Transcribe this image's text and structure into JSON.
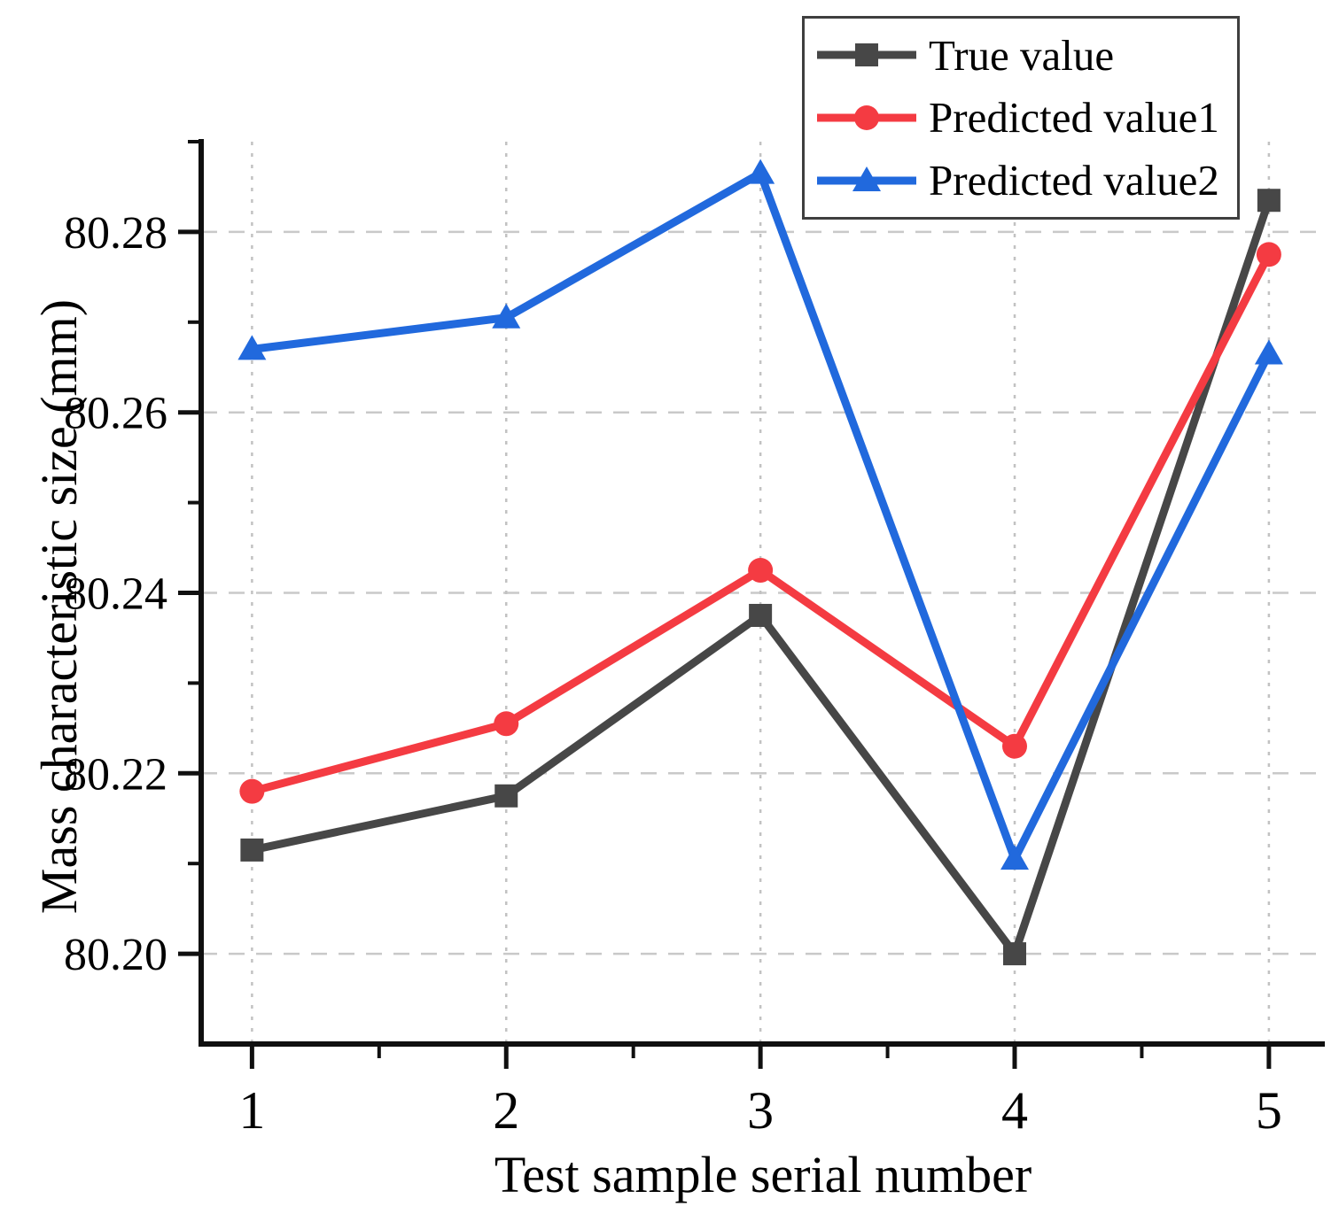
{
  "chart_data": {
    "type": "line",
    "title": "",
    "xlabel": "Test sample serial number",
    "ylabel": "Mass characteristic size (mm)",
    "x": [
      1,
      2,
      3,
      4,
      5
    ],
    "series": [
      {
        "name": "True value",
        "color": "#474747",
        "marker": "square",
        "values": [
          80.2115,
          80.2175,
          80.2375,
          80.2,
          80.2835
        ]
      },
      {
        "name": "Predicted value1",
        "color": "#f43b42",
        "marker": "circle",
        "values": [
          80.218,
          80.2255,
          80.2425,
          80.223,
          80.2775
        ]
      },
      {
        "name": "Predicted value2",
        "color": "#2169dd",
        "marker": "triangle",
        "values": [
          80.267,
          80.2705,
          80.2865,
          80.2105,
          80.2665
        ]
      }
    ],
    "xlim": [
      0.8,
      5.22
    ],
    "ylim": [
      80.19,
      80.29
    ],
    "x_ticks": [
      1,
      2,
      3,
      4,
      5
    ],
    "x_tick_labels": [
      "1",
      "2",
      "3",
      "4",
      "5"
    ],
    "x_minor_ticks": [
      1.5,
      2.5,
      3.5,
      4.5
    ],
    "y_ticks": [
      80.2,
      80.22,
      80.24,
      80.26,
      80.28
    ],
    "y_tick_labels": [
      "80.20",
      "80.22",
      "80.24",
      "80.26",
      "80.28"
    ],
    "y_minor_ticks": [
      80.21,
      80.23,
      80.25,
      80.27,
      80.29
    ],
    "grid": true,
    "legend_position": "top-right"
  },
  "colors": {
    "axis": "#101010",
    "grid_h": "#c9c9c9",
    "grid_v": "#c2c2c2",
    "tick_label": "#000000"
  }
}
